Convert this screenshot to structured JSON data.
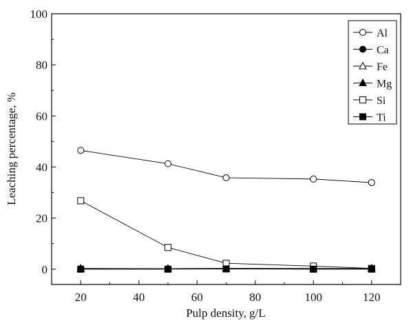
{
  "chart_data": {
    "type": "line",
    "xlabel": "Pulp density, g/L",
    "ylabel": "Leaching percentage, %",
    "x": [
      20,
      50,
      70,
      100,
      120
    ],
    "xlim": [
      10,
      130
    ],
    "ylim": [
      -6,
      100
    ],
    "xticks": [
      20,
      40,
      60,
      80,
      100,
      120
    ],
    "yticks": [
      0,
      20,
      40,
      60,
      80,
      100
    ],
    "grid": false,
    "legend_position": "top-right",
    "series": [
      {
        "name": "Al",
        "marker": "circle-open",
        "color": "#000000",
        "values": [
          46.5,
          41.3,
          35.8,
          35.3,
          33.9
        ]
      },
      {
        "name": "Ca",
        "marker": "circle-filled",
        "color": "#000000",
        "values": [
          0.1,
          0.1,
          0.1,
          0.1,
          0.1
        ]
      },
      {
        "name": "Fe",
        "marker": "triangle-open",
        "color": "#000000",
        "values": [
          0.3,
          0.2,
          0.3,
          0.3,
          0.3
        ]
      },
      {
        "name": "Mg",
        "marker": "triangle-filled",
        "color": "#000000",
        "values": [
          0.2,
          0.2,
          0.3,
          0.2,
          0.2
        ]
      },
      {
        "name": "Si",
        "marker": "square-open",
        "color": "#000000",
        "values": [
          26.8,
          8.5,
          2.3,
          1.2,
          0.3
        ]
      },
      {
        "name": "Ti",
        "marker": "square-filled",
        "color": "#000000",
        "values": [
          0.0,
          0.0,
          0.1,
          0.0,
          0.0
        ]
      }
    ]
  }
}
